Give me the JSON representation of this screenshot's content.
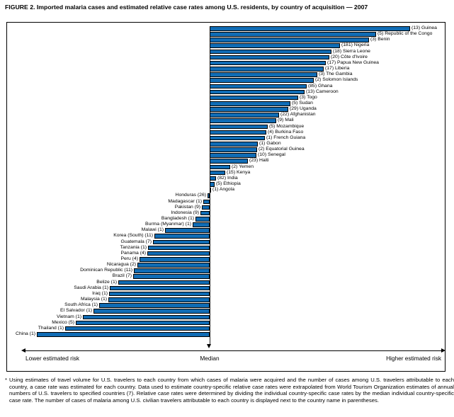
{
  "figure": {
    "title": "FIGURE 2.  Imported malaria cases and estimated relative case rates among U.S. residents, by country of acquisition — 2007",
    "footnote": "* Using estimates of travel volume for U.S. travelers to each country from which cases of malaria were acquired and the number of cases among U.S. travelers attributable to each country, a case rate was estimated for each country.  Data used to estimate country-specific relative case rates were extrapolated from World Tourism Organization estimates of annual numbers of U.S. travelers to specified countries (7). Relative case rates were determined by dividing the individual country-specific case rates by the median individual country-specific case rate. The number of cases of malaria among U.S. civilian travelers attributable to each country is displayed next to the country name in parentheses."
  },
  "axis": {
    "left_label": "Lower estimated risk",
    "center_label": "Median",
    "right_label": "Higher estimated risk"
  },
  "colors": {
    "bar_fill": "#106cb5",
    "bar_border": "#000000"
  },
  "chart_data": {
    "type": "bar",
    "orientation": "horizontal-diverging",
    "title": "Imported malaria cases and estimated relative case rates among U.S. residents, by country of acquisition — 2007",
    "xlabel": "Estimated relative case rate (no numeric scale shown; bars diverge from median)",
    "value_note": "bar_len is the bar length in original-image pixels from the median line; cases = malaria cases shown in parentheses",
    "groups": [
      {
        "name": "higher_estimated_risk",
        "direction": "right",
        "label_format": "(cases) country",
        "items": [
          {
            "country": "Guinea",
            "cases": 13,
            "bar_len": 283
          },
          {
            "country": "Republic of the Congo",
            "cases": 5,
            "bar_len": 235
          },
          {
            "country": "Benin",
            "cases": 3,
            "bar_len": 225
          },
          {
            "country": "Nigeria",
            "cases": 181,
            "bar_len": 184
          },
          {
            "country": "Sierra Leone",
            "cases": 18,
            "bar_len": 172
          },
          {
            "country": "Côte d'Ivoire",
            "cases": 20,
            "bar_len": 169
          },
          {
            "country": "Papua New Guinea",
            "cases": 17,
            "bar_len": 164
          },
          {
            "country": "Liberia",
            "cases": 17,
            "bar_len": 161
          },
          {
            "country": "The Gambia",
            "cases": 3,
            "bar_len": 152
          },
          {
            "country": "Solomon Islands",
            "cases": 2,
            "bar_len": 147
          },
          {
            "country": "Ghana",
            "cases": 85,
            "bar_len": 137
          },
          {
            "country": "Cameroon",
            "cases": 13,
            "bar_len": 134
          },
          {
            "country": "Togo",
            "cases": 3,
            "bar_len": 125
          },
          {
            "country": "Sudan",
            "cases": 5,
            "bar_len": 114
          },
          {
            "country": "Uganda",
            "cases": 29,
            "bar_len": 111
          },
          {
            "country": "Afghanistan",
            "cases": 22,
            "bar_len": 98
          },
          {
            "country": "Mali",
            "cases": 9,
            "bar_len": 94
          },
          {
            "country": "Mozambique",
            "cases": 5,
            "bar_len": 82
          },
          {
            "country": "Burkina Faso",
            "cases": 4,
            "bar_len": 80
          },
          {
            "country": "French Guiana",
            "cases": 1,
            "bar_len": 78
          },
          {
            "country": "Gabon",
            "cases": 1,
            "bar_len": 68
          },
          {
            "country": "Equatorial Guinea",
            "cases": 2,
            "bar_len": 67
          },
          {
            "country": "Senegal",
            "cases": 10,
            "bar_len": 66
          },
          {
            "country": "Haiti",
            "cases": 23,
            "bar_len": 54
          },
          {
            "country": "Yemen",
            "cases": 2,
            "bar_len": 29
          },
          {
            "country": "Kenya",
            "cases": 15,
            "bar_len": 22
          },
          {
            "country": "India",
            "cases": 82,
            "bar_len": 9
          },
          {
            "country": "Ethiopia",
            "cases": 5,
            "bar_len": 7
          },
          {
            "country": "Angola",
            "cases": 1,
            "bar_len": 2
          }
        ]
      },
      {
        "name": "lower_estimated_risk",
        "direction": "left",
        "label_format": "country (cases)",
        "items": [
          {
            "country": "Honduras",
            "cases": 26,
            "bar_len": 3
          },
          {
            "country": "Madagascar",
            "cases": 1,
            "bar_len": 9
          },
          {
            "country": "Pakistan",
            "cases": 9,
            "bar_len": 11
          },
          {
            "country": "Indonesia",
            "cases": 9,
            "bar_len": 13
          },
          {
            "country": "Bangladesh",
            "cases": 1,
            "bar_len": 20
          },
          {
            "country": "Burma (Myanmar)",
            "cases": 1,
            "bar_len": 24
          },
          {
            "country": "Malawi",
            "cases": 1,
            "bar_len": 63
          },
          {
            "country": "Korea (South)",
            "cases": 11,
            "bar_len": 78
          },
          {
            "country": "Guatemala",
            "cases": 7,
            "bar_len": 80
          },
          {
            "country": "Tanzania",
            "cases": 1,
            "bar_len": 87
          },
          {
            "country": "Panama",
            "cases": 4,
            "bar_len": 88
          },
          {
            "country": "Peru",
            "cases": 4,
            "bar_len": 99
          },
          {
            "country": "Nicaragua",
            "cases": 2,
            "bar_len": 102
          },
          {
            "country": "Dominican Republic",
            "cases": 11,
            "bar_len": 107
          },
          {
            "country": "Brazil",
            "cases": 7,
            "bar_len": 108
          },
          {
            "country": "Belize",
            "cases": 1,
            "bar_len": 129
          },
          {
            "country": "Saudi Arabia",
            "cases": 1,
            "bar_len": 141
          },
          {
            "country": "Iraq",
            "cases": 1,
            "bar_len": 142
          },
          {
            "country": "Malaysia",
            "cases": 1,
            "bar_len": 143
          },
          {
            "country": "South Africa",
            "cases": 1,
            "bar_len": 156
          },
          {
            "country": "El Salvador",
            "cases": 1,
            "bar_len": 164
          },
          {
            "country": "Vietnam",
            "cases": 1,
            "bar_len": 179
          },
          {
            "country": "Mexico",
            "cases": 5,
            "bar_len": 189
          },
          {
            "country": "Thailand",
            "cases": 1,
            "bar_len": 204
          },
          {
            "country": "China",
            "cases": 1,
            "bar_len": 244
          }
        ]
      }
    ]
  }
}
